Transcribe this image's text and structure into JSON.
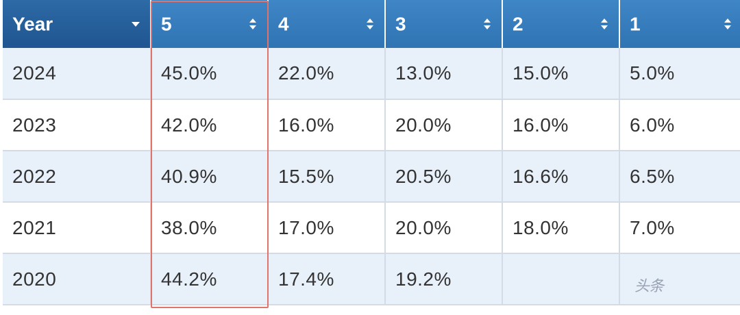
{
  "table": {
    "headers": [
      {
        "label": "Year",
        "sort": "dropdown"
      },
      {
        "label": "5",
        "sort": "updown"
      },
      {
        "label": "4",
        "sort": "updown"
      },
      {
        "label": "3",
        "sort": "updown"
      },
      {
        "label": "2",
        "sort": "updown"
      },
      {
        "label": "1",
        "sort": "updown"
      }
    ],
    "rows": [
      {
        "year": "2024",
        "c5": "45.0%",
        "c4": "22.0%",
        "c3": "13.0%",
        "c2": "15.0%",
        "c1": "5.0%"
      },
      {
        "year": "2023",
        "c5": "42.0%",
        "c4": "16.0%",
        "c3": "20.0%",
        "c2": "16.0%",
        "c1": "6.0%"
      },
      {
        "year": "2022",
        "c5": "40.9%",
        "c4": "15.5%",
        "c3": "20.5%",
        "c2": "16.6%",
        "c1": "6.5%"
      },
      {
        "year": "2021",
        "c5": "38.0%",
        "c4": "17.0%",
        "c3": "20.0%",
        "c2": "18.0%",
        "c1": "7.0%"
      },
      {
        "year": "2020",
        "c5": "44.2%",
        "c4": "17.4%",
        "c3": "19.2%",
        "c2": "",
        "c1": ""
      }
    ]
  },
  "watermark": "头条",
  "colors": {
    "header_blue": "#3478b8",
    "header_dark": "#245d9a",
    "row_stripe": "#e8f0fa",
    "highlight_border": "#e0746a"
  },
  "icons": {
    "year_sort": "caret-down-icon",
    "col_sort": "sort-updown-icon"
  }
}
